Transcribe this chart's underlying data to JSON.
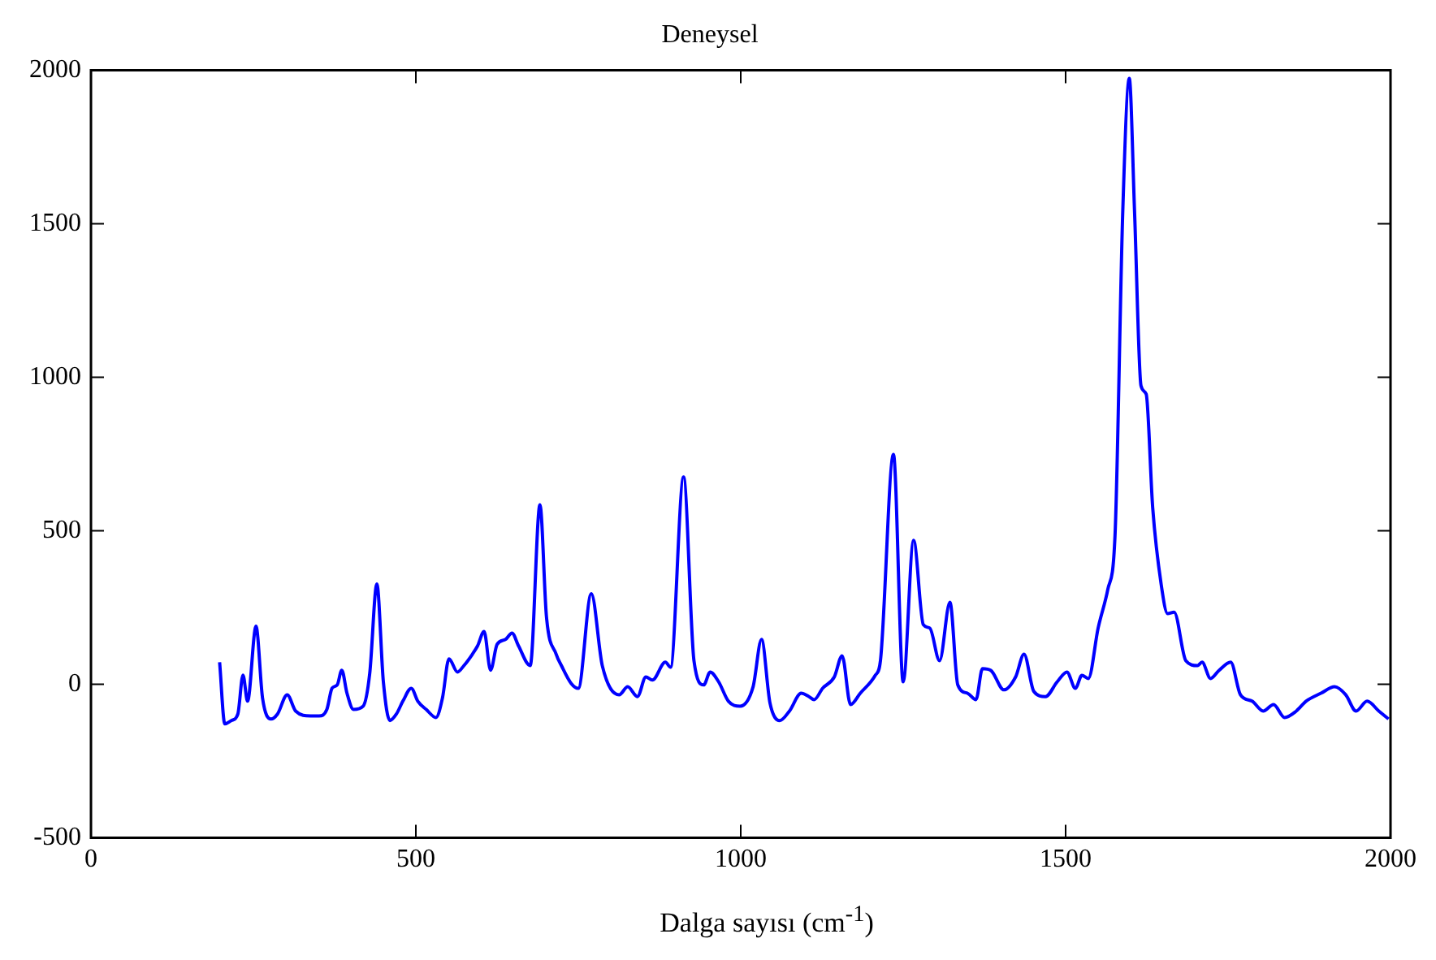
{
  "chart_data": {
    "type": "line",
    "title": "Deneysel",
    "xlabel": "Dalga sayısı (cm$^{-1}$)",
    "x": [
      198,
      206,
      216,
      226,
      234,
      241,
      254,
      264,
      277,
      287,
      302,
      315,
      338,
      351,
      363,
      371,
      379,
      386,
      394,
      404,
      419,
      429,
      440,
      450,
      460,
      470,
      480,
      493,
      503,
      516,
      531,
      541,
      551,
      564,
      574,
      587,
      595,
      605,
      615,
      625,
      638,
      648,
      658,
      676,
      691,
      701,
      716,
      724,
      739,
      750,
      770,
      787,
      813,
      826,
      841,
      854,
      864,
      884,
      892,
      912,
      928,
      943,
      953,
      966,
      981,
      999,
      1019,
      1032,
      1045,
      1060,
      1075,
      1093,
      1105,
      1113,
      1126,
      1144,
      1156,
      1169,
      1184,
      1207,
      1215,
      1235,
      1250,
      1266,
      1281,
      1291,
      1306,
      1322,
      1334,
      1349,
      1362,
      1372,
      1385,
      1405,
      1423,
      1436,
      1451,
      1469,
      1487,
      1502,
      1515,
      1525,
      1535,
      1550,
      1565,
      1576,
      1588,
      1598,
      1606,
      1616,
      1624,
      1634,
      1647,
      1657,
      1667,
      1685,
      1703,
      1710,
      1723,
      1736,
      1754,
      1769,
      1787,
      1804,
      1820,
      1837,
      1855,
      1870,
      1893,
      1914,
      1931,
      1947,
      1964,
      1982,
      1997
    ],
    "series": [
      {
        "color": "#0000ff",
        "values": [
          72,
          -129,
          -118,
          -97,
          30,
          -55,
          189,
          -44,
          -113,
          -97,
          -34,
          -87,
          -103,
          -103,
          -82,
          -13,
          -2,
          46,
          -29,
          -82,
          -71,
          35,
          327,
          8,
          -118,
          -97,
          -55,
          -13,
          -55,
          -82,
          -108,
          -44,
          83,
          40,
          61,
          98,
          125,
          172,
          46,
          130,
          146,
          167,
          125,
          61,
          585,
          220,
          98,
          61,
          3,
          -13,
          295,
          60,
          -34,
          -8,
          -40,
          24,
          14,
          72,
          56,
          675,
          77,
          -2,
          40,
          8,
          -55,
          -71,
          -8,
          146,
          -61,
          -118,
          -87,
          -29,
          -40,
          -50,
          -13,
          24,
          93,
          -66,
          -29,
          29,
          77,
          749,
          8,
          469,
          194,
          183,
          77,
          267,
          -2,
          -29,
          -50,
          51,
          45,
          -18,
          24,
          98,
          -23,
          -40,
          8,
          40,
          -13,
          29,
          19,
          183,
          310,
          484,
          1544,
          1973,
          1544,
          972,
          945,
          575,
          326,
          230,
          235,
          77,
          61,
          72,
          19,
          45,
          72,
          -34,
          -55,
          -87,
          -66,
          -108,
          -87,
          -55,
          -29,
          -8,
          -34,
          -87,
          -55,
          -87,
          -113
        ]
      }
    ],
    "xlim": [
      0,
      2000
    ],
    "xticks": [
      0,
      500,
      1000,
      1500,
      2000
    ],
    "ylim": [
      -500,
      2000
    ],
    "yticks": [
      -500,
      0,
      500,
      1000,
      1500,
      2000
    ],
    "grid": false,
    "legend": false,
    "marker": "none",
    "line_style": "solid"
  }
}
